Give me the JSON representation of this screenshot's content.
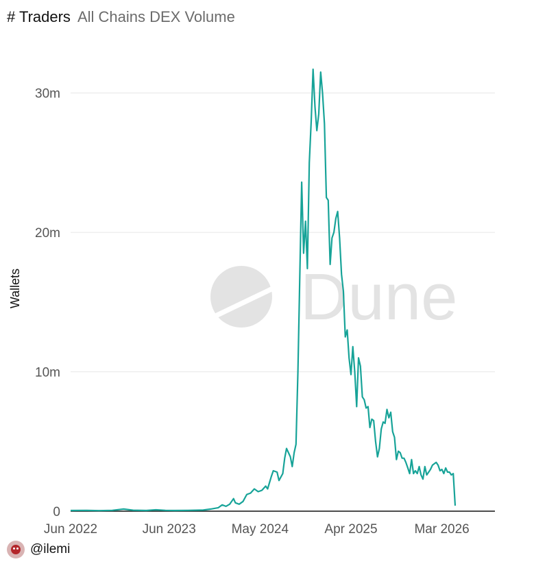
{
  "header": {
    "title": "# Traders",
    "subtitle": "All Chains DEX Volume"
  },
  "watermark": {
    "text": "Dune"
  },
  "footer": {
    "handle": "@ilemi"
  },
  "colors": {
    "series": "#17a398",
    "grid": "#e6e6e6",
    "axis_text": "#555555",
    "watermark": "#e3e3e3"
  },
  "chart_data": {
    "type": "line",
    "title": "# Traders",
    "subtitle": "All Chains DEX Volume",
    "ylabel": "Wallets",
    "xlabel": "",
    "ylim": [
      0,
      32000000
    ],
    "yticks": [
      {
        "value": 0,
        "label": "0"
      },
      {
        "value": 10000000,
        "label": "10m"
      },
      {
        "value": 20000000,
        "label": "20m"
      },
      {
        "value": 30000000,
        "label": "30m"
      }
    ],
    "xlim": [
      0,
      224
    ],
    "xticks": [
      {
        "value": 0,
        "label": "Jun 2022"
      },
      {
        "value": 52,
        "label": "Jun 2023"
      },
      {
        "value": 100,
        "label": "May 2024"
      },
      {
        "value": 148,
        "label": "Apr 2025"
      },
      {
        "value": 196,
        "label": "Mar 2026"
      }
    ],
    "grid": true,
    "legend": "none",
    "series": [
      {
        "name": "Wallets",
        "points": [
          [
            0,
            50000
          ],
          [
            8,
            60000
          ],
          [
            15,
            40000
          ],
          [
            22,
            60000
          ],
          [
            28,
            150000
          ],
          [
            33,
            70000
          ],
          [
            40,
            50000
          ],
          [
            45,
            100000
          ],
          [
            50,
            60000
          ],
          [
            55,
            50000
          ],
          [
            62,
            60000
          ],
          [
            70,
            80000
          ],
          [
            74,
            150000
          ],
          [
            78,
            250000
          ],
          [
            80,
            450000
          ],
          [
            82,
            350000
          ],
          [
            84,
            500000
          ],
          [
            86,
            900000
          ],
          [
            87,
            600000
          ],
          [
            89,
            500000
          ],
          [
            91,
            700000
          ],
          [
            93,
            1200000
          ],
          [
            95,
            1300000
          ],
          [
            97,
            1600000
          ],
          [
            99,
            1400000
          ],
          [
            101,
            1500000
          ],
          [
            103,
            1800000
          ],
          [
            104,
            1600000
          ],
          [
            106,
            2500000
          ],
          [
            107,
            2900000
          ],
          [
            109,
            2800000
          ],
          [
            110,
            2200000
          ],
          [
            112,
            2700000
          ],
          [
            113,
            3800000
          ],
          [
            114,
            4500000
          ],
          [
            116,
            3900000
          ],
          [
            117,
            3200000
          ],
          [
            118,
            4200000
          ],
          [
            119,
            4800000
          ],
          [
            120,
            10000000
          ],
          [
            121,
            17000000
          ],
          [
            122,
            23600000
          ],
          [
            123,
            18500000
          ],
          [
            124,
            20800000
          ],
          [
            125,
            17400000
          ],
          [
            126,
            25000000
          ],
          [
            127,
            28000000
          ],
          [
            128,
            31700000
          ],
          [
            129,
            29000000
          ],
          [
            130,
            27300000
          ],
          [
            131,
            28500000
          ],
          [
            132,
            31500000
          ],
          [
            133,
            30000000
          ],
          [
            134,
            27800000
          ],
          [
            135,
            22500000
          ],
          [
            136,
            22300000
          ],
          [
            137,
            17700000
          ],
          [
            138,
            19600000
          ],
          [
            139,
            20000000
          ],
          [
            140,
            21000000
          ],
          [
            141,
            21500000
          ],
          [
            142,
            19600000
          ],
          [
            143,
            17000000
          ],
          [
            144,
            15800000
          ],
          [
            145,
            12500000
          ],
          [
            146,
            13000000
          ],
          [
            147,
            11000000
          ],
          [
            148,
            9800000
          ],
          [
            149,
            11800000
          ],
          [
            150,
            10000000
          ],
          [
            151,
            7500000
          ],
          [
            152,
            11000000
          ],
          [
            153,
            10400000
          ],
          [
            154,
            8200000
          ],
          [
            155,
            8000000
          ],
          [
            156,
            7400000
          ],
          [
            157,
            7500000
          ],
          [
            158,
            6000000
          ],
          [
            159,
            6600000
          ],
          [
            160,
            6500000
          ],
          [
            161,
            5000000
          ],
          [
            162,
            3900000
          ],
          [
            163,
            4500000
          ],
          [
            164,
            5900000
          ],
          [
            165,
            6400000
          ],
          [
            166,
            6300000
          ],
          [
            167,
            7300000
          ],
          [
            168,
            6700000
          ],
          [
            169,
            7100000
          ],
          [
            170,
            5700000
          ],
          [
            171,
            5300000
          ],
          [
            172,
            3700000
          ],
          [
            173,
            4300000
          ],
          [
            174,
            4200000
          ],
          [
            175,
            3800000
          ],
          [
            176,
            3800000
          ],
          [
            177,
            3500000
          ],
          [
            178,
            3100000
          ],
          [
            179,
            2700000
          ],
          [
            180,
            3700000
          ],
          [
            181,
            2700000
          ],
          [
            182,
            2900000
          ],
          [
            183,
            2700000
          ],
          [
            184,
            3200000
          ],
          [
            185,
            2600000
          ],
          [
            186,
            2300000
          ],
          [
            187,
            3200000
          ],
          [
            188,
            2600000
          ],
          [
            189,
            2800000
          ],
          [
            190,
            3000000
          ],
          [
            191,
            3300000
          ],
          [
            192,
            3400000
          ],
          [
            193,
            3500000
          ],
          [
            194,
            3300000
          ],
          [
            195,
            2900000
          ],
          [
            196,
            3000000
          ],
          [
            197,
            2700000
          ],
          [
            198,
            3100000
          ],
          [
            199,
            2800000
          ],
          [
            200,
            2800000
          ],
          [
            201,
            2600000
          ],
          [
            202,
            2700000
          ],
          [
            203,
            400000
          ]
        ]
      }
    ]
  }
}
